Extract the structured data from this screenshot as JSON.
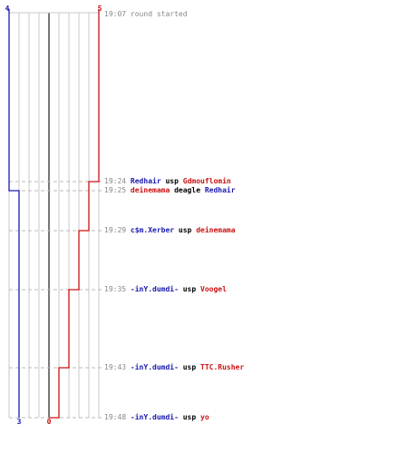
{
  "colors": {
    "blue_team": "#1a1ab0",
    "red_team": "#cc1111",
    "time": "#888888",
    "action": "#000000",
    "grid": "#c8c8c8",
    "center_line": "#777777",
    "dashed": "#bbbbbb"
  },
  "score_labels": {
    "blue_start": "4",
    "red_start": "5",
    "blue_end": "3",
    "red_end": "0"
  },
  "events": [
    {
      "time": "19:07",
      "text": "round started",
      "type": "start"
    },
    {
      "time": "19:24",
      "killer": "Redhair",
      "killer_team": "blue",
      "weapon": "usp",
      "victim": "Gdmouflomin",
      "victim_team": "red"
    },
    {
      "time": "19:25",
      "killer": "deinemama",
      "killer_team": "red",
      "weapon": "deagle",
      "victim": "Redhair",
      "victim_team": "blue"
    },
    {
      "time": "19:29",
      "killer": "c$m.Xerber",
      "killer_team": "blue",
      "weapon": "usp",
      "victim": "deinemama",
      "victim_team": "red"
    },
    {
      "time": "19:35",
      "killer": "-inY.dumdi-",
      "killer_team": "blue",
      "weapon": "usp",
      "victim": "Voogel",
      "victim_team": "red"
    },
    {
      "time": "19:43",
      "killer": "-inY.dumdi-",
      "killer_team": "blue",
      "weapon": "usp",
      "victim": "TTC.Rusher",
      "victim_team": "red"
    },
    {
      "time": "19:48",
      "killer": "-inY.dumdi-",
      "killer_team": "blue",
      "weapon": "usp",
      "victim": "yo",
      "victim_team": "red"
    }
  ]
}
